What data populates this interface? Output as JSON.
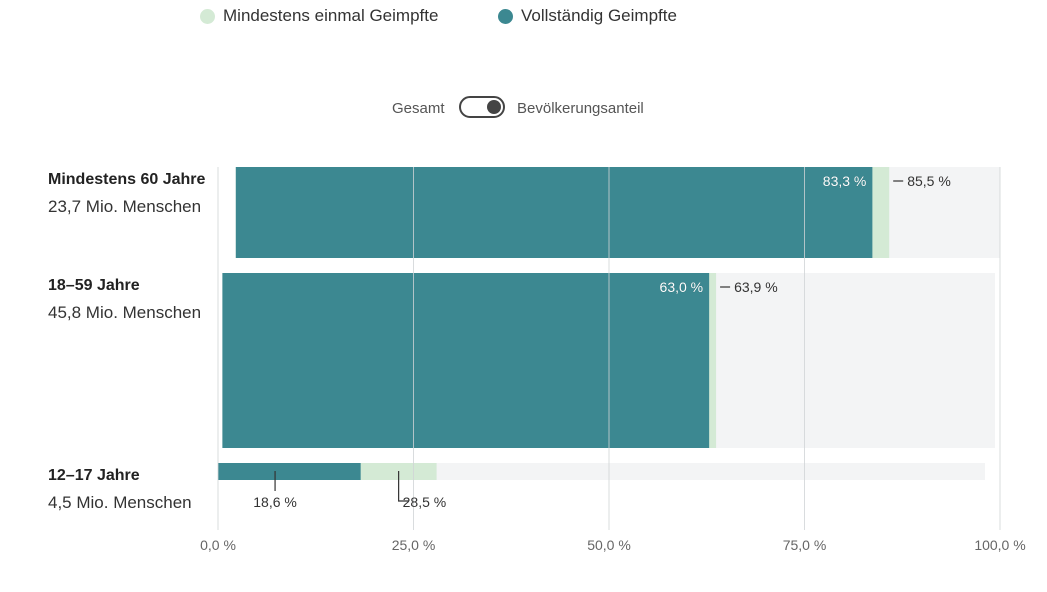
{
  "legend": [
    {
      "label": "Mindestens einmal Geimpfte",
      "color": "#d4ead5"
    },
    {
      "label": "Vollständig Geimpfte",
      "color": "#3c8891"
    }
  ],
  "toggle": {
    "left_label": "Gesamt",
    "right_label": "Bevölkerungsanteil"
  },
  "chart_data": {
    "type": "bar",
    "orientation": "horizontal",
    "stacked": "overlay",
    "categories": [
      "Mindestens 60 Jahre",
      "18–59 Jahre",
      "12–17 Jahre"
    ],
    "category_subtitles": [
      "23,7 Mio. Menschen",
      "45,8 Mio. Menschen",
      "4,5 Mio. Menschen"
    ],
    "population_millions": [
      23.7,
      45.8,
      4.5
    ],
    "series": [
      {
        "name": "Mindestens einmal Geimpfte",
        "values": [
          85.5,
          63.9,
          28.5
        ],
        "labels": [
          "85,5 %",
          "63,9 %",
          "28,5 %"
        ],
        "color": "#d4ead5"
      },
      {
        "name": "Vollständig Geimpfte",
        "values": [
          83.3,
          63.0,
          18.6
        ],
        "labels": [
          "83,3 %",
          "63,0 %",
          "18,6 %"
        ],
        "color": "#3c8891"
      }
    ],
    "background_color": "#f3f4f5",
    "x_ticks": [
      0,
      25,
      50,
      75,
      100
    ],
    "x_tick_labels": [
      "0,0 %",
      "25,0 %",
      "50,0 %",
      "75,0 %",
      "100,0 %"
    ],
    "xlim": [
      0,
      100
    ],
    "grid": true
  }
}
